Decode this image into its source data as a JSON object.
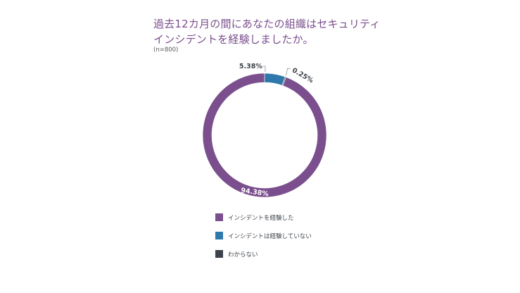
{
  "title_lines": [
    "過去12カ月の間にあなたの組織はセキュリティ",
    "インシデントを経験しましたか。"
  ],
  "sample_note": "(n=800)",
  "chart_data": {
    "type": "pie",
    "style": "donut",
    "slices": [
      {
        "label": "インシデントを経験した",
        "value": 94.38,
        "display": "94.38%",
        "color": "#7b4f8e"
      },
      {
        "label": "インシデントは経験していない",
        "value": 5.38,
        "display": "5.38%",
        "color": "#2e78ab"
      },
      {
        "label": "わからない",
        "value": 0.25,
        "display": "0.25%",
        "color": "#3d434a"
      }
    ],
    "legend_position": "bottom"
  }
}
